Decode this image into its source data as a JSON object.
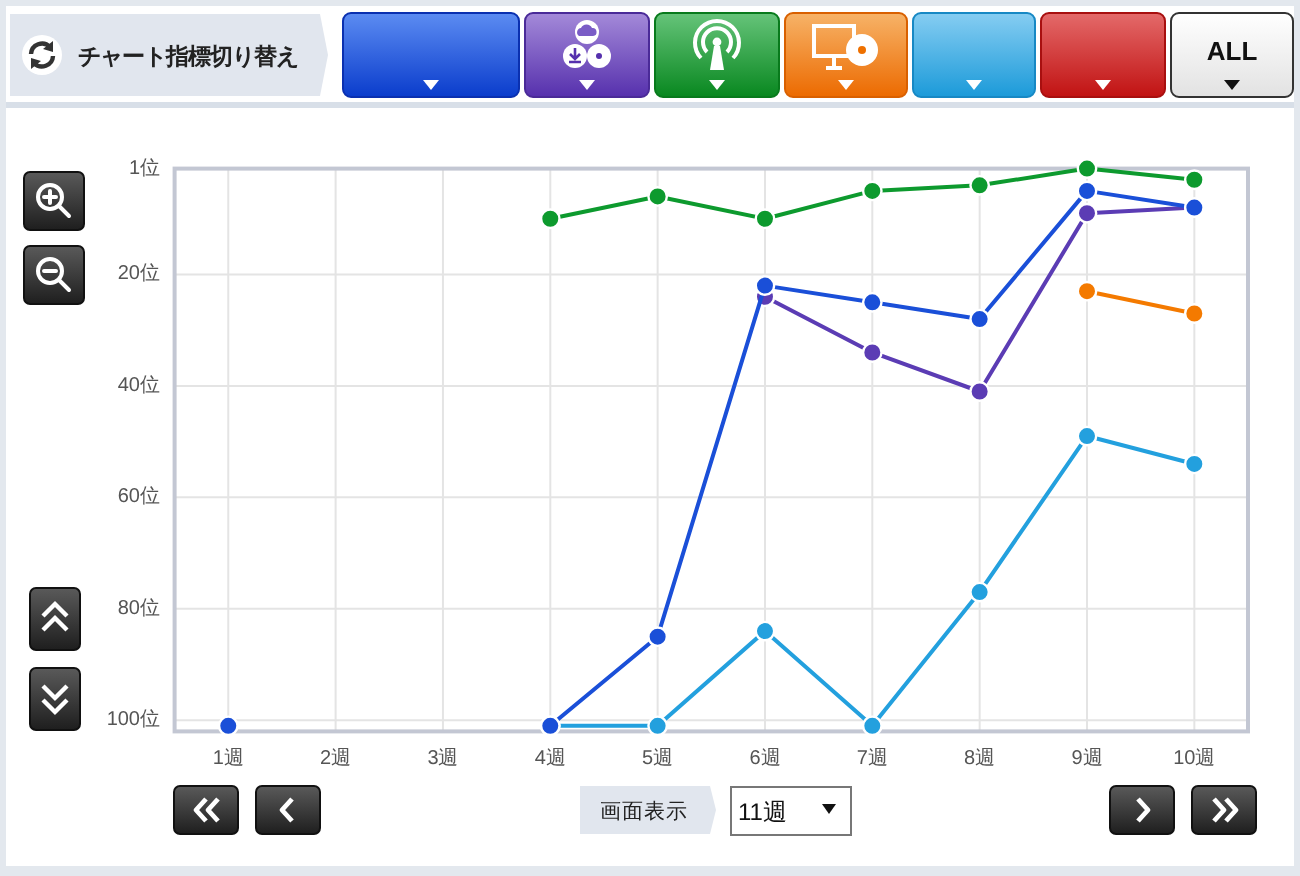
{
  "chart_data": {
    "type": "line",
    "categories": [
      "1週",
      "2週",
      "3週",
      "4週",
      "5週",
      "6週",
      "7週",
      "8週",
      "9週",
      "10週"
    ],
    "series": [
      {
        "color": "#0d9a2e",
        "values": [
          null,
          null,
          null,
          10,
          6,
          10,
          5,
          4,
          1,
          3
        ]
      },
      {
        "color": "#5b3cb4",
        "values": [
          null,
          null,
          null,
          null,
          null,
          24,
          34,
          41,
          9,
          8
        ]
      },
      {
        "color": "#f47a00",
        "values": [
          null,
          null,
          null,
          null,
          null,
          null,
          null,
          null,
          23,
          27
        ]
      },
      {
        "color": "#23a0de",
        "values": [
          null,
          null,
          null,
          101,
          101,
          84,
          101,
          77,
          49,
          54
        ]
      },
      {
        "color": "#1a4fd8",
        "values": [
          101,
          null,
          null,
          101,
          85,
          22,
          25,
          28,
          5,
          8
        ]
      }
    ],
    "ylim": [
      102,
      1
    ],
    "yticks": [
      {
        "value": 1,
        "label": "1位"
      },
      {
        "value": 20,
        "label": "20位"
      },
      {
        "value": 40,
        "label": "40位"
      },
      {
        "value": 60,
        "label": "60位"
      },
      {
        "value": 80,
        "label": "80位"
      },
      {
        "value": 100,
        "label": "100位"
      }
    ],
    "grid": true,
    "marker": "circle",
    "line_style": "solid",
    "annotations": [
      "チャート指標切り替え",
      "ALL",
      "画面表示",
      "11週"
    ]
  }
}
